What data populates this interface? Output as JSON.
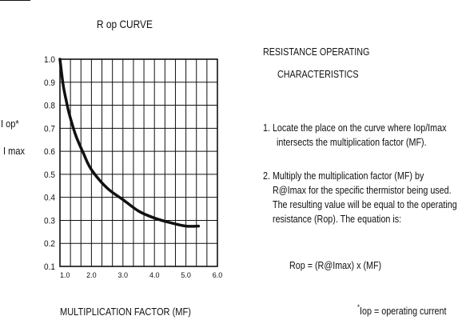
{
  "chart_data": {
    "type": "line",
    "title": "R op CURVE",
    "xlabel": "MULTIPLICATION FACTOR (MF)",
    "ylabel_numerator": "I op*",
    "ylabel_denominator": "I max",
    "xlim": [
      1.0,
      6.0
    ],
    "ylim": [
      0.1,
      1.0
    ],
    "x_ticks": [
      {
        "value": 1.0,
        "label": "1.0"
      },
      {
        "value": 2.0,
        "label": "2.0"
      },
      {
        "value": 3.0,
        "label": "3.0"
      },
      {
        "value": 4.0,
        "label": "4.0"
      },
      {
        "value": 5.0,
        "label": "5.0"
      },
      {
        "value": 6.0,
        "label": "6.0"
      }
    ],
    "y_ticks": [
      {
        "value": 1.0,
        "label": "1.0"
      },
      {
        "value": 0.9,
        "label": "0.9"
      },
      {
        "value": 0.8,
        "label": "0.8"
      },
      {
        "value": 0.7,
        "label": "0.7"
      },
      {
        "value": 0.6,
        "label": "0.6"
      },
      {
        "value": 0.5,
        "label": "0.5"
      },
      {
        "value": 0.4,
        "label": "0.4"
      },
      {
        "value": 0.3,
        "label": "0.3"
      },
      {
        "value": 0.2,
        "label": "0.2"
      },
      {
        "value": 0.1,
        "label": "0.1"
      }
    ],
    "grid": true,
    "series": [
      {
        "x": [
          1.0,
          1.1,
          1.2,
          1.3,
          1.5,
          1.75,
          2.0,
          2.5,
          3.0,
          3.5,
          4.0,
          4.5,
          5.0,
          5.4
        ],
        "y": [
          1.0,
          0.89,
          0.82,
          0.76,
          0.67,
          0.59,
          0.52,
          0.44,
          0.39,
          0.34,
          0.31,
          0.29,
          0.275,
          0.275
        ]
      }
    ]
  },
  "panel": {
    "heading_1": "RESISTANCE  OPERATING",
    "heading_2": "CHARACTERISTICS",
    "step1_line1": "1.  Locate the place on the curve where Iop/Imax",
    "step1_line2": "intersects the multiplication factor (MF).",
    "step2_line1": "2.  Multiply the multiplication factor (MF) by",
    "step2_line2": "R@Imax for the specific thermistor being used.",
    "step2_line3": "The resulting value will be equal to the operating",
    "step2_line4": "resistance (Rop). The equation is:",
    "equation": "Rop = (R@Imax) x (MF)",
    "footnote_mark": "*",
    "footnote_text": "Iop = operating current"
  }
}
